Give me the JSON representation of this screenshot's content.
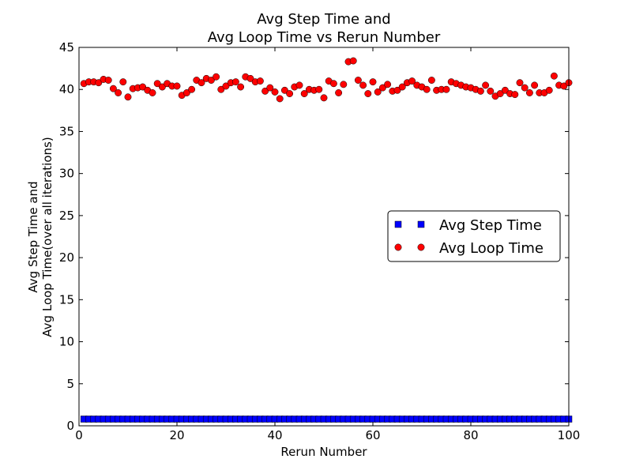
{
  "chart_data": {
    "type": "scatter",
    "title_line1": "Avg Step Time and",
    "title_line2": "Avg Loop Time vs Rerun Number",
    "xlabel": "Rerun Number",
    "ylabel_line1": "Avg Step Time and",
    "ylabel_line2": "Avg Loop Time(over all iterations)",
    "xlim": [
      0,
      100
    ],
    "ylim": [
      0,
      45
    ],
    "xticks": [
      0,
      20,
      40,
      60,
      80,
      100
    ],
    "yticks": [
      0,
      5,
      10,
      15,
      20,
      25,
      30,
      35,
      40,
      45
    ],
    "grid": false,
    "legend_position": "center-right",
    "x": [
      1,
      2,
      3,
      4,
      5,
      6,
      7,
      8,
      9,
      10,
      11,
      12,
      13,
      14,
      15,
      16,
      17,
      18,
      19,
      20,
      21,
      22,
      23,
      24,
      25,
      26,
      27,
      28,
      29,
      30,
      31,
      32,
      33,
      34,
      35,
      36,
      37,
      38,
      39,
      40,
      41,
      42,
      43,
      44,
      45,
      46,
      47,
      48,
      49,
      50,
      51,
      52,
      53,
      54,
      55,
      56,
      57,
      58,
      59,
      60,
      61,
      62,
      63,
      64,
      65,
      66,
      67,
      68,
      69,
      70,
      71,
      72,
      73,
      74,
      75,
      76,
      77,
      78,
      79,
      80,
      81,
      82,
      83,
      84,
      85,
      86,
      87,
      88,
      89,
      90,
      91,
      92,
      93,
      94,
      95,
      96,
      97,
      98,
      99,
      100
    ],
    "series": [
      {
        "name": "Avg Step Time",
        "marker": "square",
        "color": "#0000ff",
        "values": [
          0.8,
          0.8,
          0.8,
          0.8,
          0.8,
          0.8,
          0.8,
          0.8,
          0.8,
          0.8,
          0.8,
          0.8,
          0.8,
          0.8,
          0.8,
          0.8,
          0.8,
          0.8,
          0.8,
          0.8,
          0.8,
          0.8,
          0.8,
          0.8,
          0.8,
          0.8,
          0.8,
          0.8,
          0.8,
          0.8,
          0.8,
          0.8,
          0.8,
          0.8,
          0.8,
          0.8,
          0.8,
          0.8,
          0.8,
          0.8,
          0.8,
          0.8,
          0.8,
          0.8,
          0.8,
          0.8,
          0.8,
          0.8,
          0.8,
          0.8,
          0.8,
          0.8,
          0.8,
          0.8,
          0.8,
          0.8,
          0.8,
          0.8,
          0.8,
          0.8,
          0.8,
          0.8,
          0.8,
          0.8,
          0.8,
          0.8,
          0.8,
          0.8,
          0.8,
          0.8,
          0.8,
          0.8,
          0.8,
          0.8,
          0.8,
          0.8,
          0.8,
          0.8,
          0.8,
          0.8,
          0.8,
          0.8,
          0.8,
          0.8,
          0.8,
          0.8,
          0.8,
          0.8,
          0.8,
          0.8,
          0.8,
          0.8,
          0.8,
          0.8,
          0.8,
          0.8,
          0.8,
          0.8,
          0.8,
          0.8
        ]
      },
      {
        "name": "Avg Loop Time",
        "marker": "circle",
        "color": "#ff0000",
        "values": [
          40.7,
          40.9,
          40.9,
          40.8,
          41.2,
          41.1,
          40.1,
          39.6,
          40.9,
          39.1,
          40.1,
          40.2,
          40.3,
          39.9,
          39.6,
          40.7,
          40.3,
          40.7,
          40.4,
          40.4,
          39.3,
          39.6,
          40.0,
          41.1,
          40.8,
          41.3,
          41.1,
          41.5,
          40.0,
          40.4,
          40.8,
          40.9,
          40.3,
          41.5,
          41.3,
          40.9,
          41.0,
          39.8,
          40.2,
          39.7,
          38.9,
          39.9,
          39.5,
          40.3,
          40.5,
          39.5,
          40.0,
          39.9,
          40.0,
          39.0,
          41.0,
          40.7,
          39.6,
          40.6,
          43.3,
          43.4,
          41.1,
          40.5,
          39.5,
          40.9,
          39.7,
          40.2,
          40.6,
          39.8,
          39.9,
          40.3,
          40.8,
          41.0,
          40.5,
          40.3,
          40.0,
          41.1,
          39.9,
          40.0,
          40.0,
          40.9,
          40.7,
          40.5,
          40.3,
          40.2,
          40.0,
          39.8,
          40.5,
          39.8,
          39.2,
          39.5,
          39.9,
          39.5,
          39.4,
          40.8,
          40.2,
          39.6,
          40.5,
          39.6,
          39.6,
          39.9,
          41.6,
          40.5,
          40.4,
          40.8
        ]
      }
    ]
  }
}
